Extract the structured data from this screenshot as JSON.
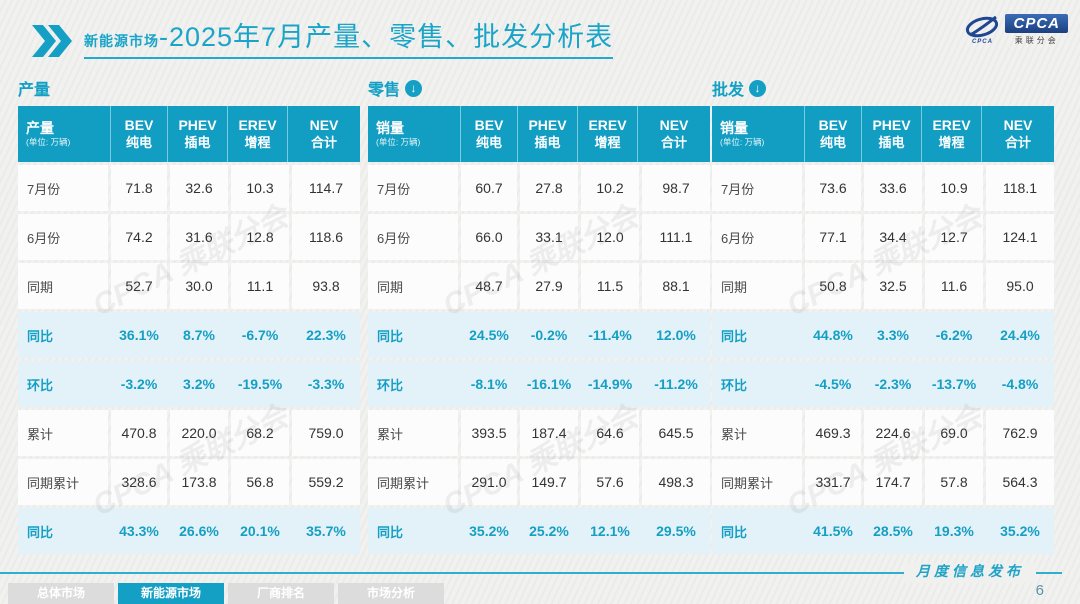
{
  "title": {
    "highlight": "新能源市场",
    "rest": "-2025年7月产量、零售、批发分析表"
  },
  "logo": {
    "badge": "CPCA",
    "caption": "CPCA",
    "subtitle": "乘联分会"
  },
  "watermark": "CPCA 乘联分会",
  "tables": [
    {
      "section_label": "产量",
      "arrow_icon": false,
      "header": {
        "label": "产量",
        "unit": "(单位: 万辆)",
        "columns": [
          {
            "en": "BEV",
            "cn": "纯电"
          },
          {
            "en": "PHEV",
            "cn": "插电"
          },
          {
            "en": "EREV",
            "cn": "增程"
          },
          {
            "en": "NEV",
            "cn": "合计"
          }
        ]
      },
      "rows": [
        {
          "label": "7月份",
          "type": "num",
          "values": [
            "71.8",
            "32.6",
            "10.3",
            "114.7"
          ]
        },
        {
          "label": "6月份",
          "type": "num",
          "values": [
            "74.2",
            "31.6",
            "12.8",
            "118.6"
          ]
        },
        {
          "label": "同期",
          "type": "num",
          "values": [
            "52.7",
            "30.0",
            "11.1",
            "93.8"
          ]
        },
        {
          "label": "同比",
          "type": "pct",
          "values": [
            "36.1%",
            "8.7%",
            "-6.7%",
            "22.3%"
          ]
        },
        {
          "label": "环比",
          "type": "pct",
          "values": [
            "-3.2%",
            "3.2%",
            "-19.5%",
            "-3.3%"
          ]
        },
        {
          "label": "累计",
          "type": "num",
          "values": [
            "470.8",
            "220.0",
            "68.2",
            "759.0"
          ]
        },
        {
          "label": "同期累计",
          "type": "num",
          "values": [
            "328.6",
            "173.8",
            "56.8",
            "559.2"
          ]
        },
        {
          "label": "同比",
          "type": "pct",
          "values": [
            "43.3%",
            "26.6%",
            "20.1%",
            "35.7%"
          ]
        }
      ]
    },
    {
      "section_label": "零售",
      "arrow_icon": true,
      "header": {
        "label": "销量",
        "unit": "(单位: 万辆)",
        "columns": [
          {
            "en": "BEV",
            "cn": "纯电"
          },
          {
            "en": "PHEV",
            "cn": "插电"
          },
          {
            "en": "EREV",
            "cn": "增程"
          },
          {
            "en": "NEV",
            "cn": "合计"
          }
        ]
      },
      "rows": [
        {
          "label": "7月份",
          "type": "num",
          "values": [
            "60.7",
            "27.8",
            "10.2",
            "98.7"
          ]
        },
        {
          "label": "6月份",
          "type": "num",
          "values": [
            "66.0",
            "33.1",
            "12.0",
            "111.1"
          ]
        },
        {
          "label": "同期",
          "type": "num",
          "values": [
            "48.7",
            "27.9",
            "11.5",
            "88.1"
          ]
        },
        {
          "label": "同比",
          "type": "pct",
          "values": [
            "24.5%",
            "-0.2%",
            "-11.4%",
            "12.0%"
          ]
        },
        {
          "label": "环比",
          "type": "pct",
          "values": [
            "-8.1%",
            "-16.1%",
            "-14.9%",
            "-11.2%"
          ]
        },
        {
          "label": "累计",
          "type": "num",
          "values": [
            "393.5",
            "187.4",
            "64.6",
            "645.5"
          ]
        },
        {
          "label": "同期累计",
          "type": "num",
          "values": [
            "291.0",
            "149.7",
            "57.6",
            "498.3"
          ]
        },
        {
          "label": "同比",
          "type": "pct",
          "values": [
            "35.2%",
            "25.2%",
            "12.1%",
            "29.5%"
          ]
        }
      ]
    },
    {
      "section_label": "批发",
      "arrow_icon": true,
      "header": {
        "label": "销量",
        "unit": "(单位: 万辆)",
        "columns": [
          {
            "en": "BEV",
            "cn": "纯电"
          },
          {
            "en": "PHEV",
            "cn": "插电"
          },
          {
            "en": "EREV",
            "cn": "增程"
          },
          {
            "en": "NEV",
            "cn": "合计"
          }
        ]
      },
      "rows": [
        {
          "label": "7月份",
          "type": "num",
          "values": [
            "73.6",
            "33.6",
            "10.9",
            "118.1"
          ]
        },
        {
          "label": "6月份",
          "type": "num",
          "values": [
            "77.1",
            "34.4",
            "12.7",
            "124.1"
          ]
        },
        {
          "label": "同期",
          "type": "num",
          "values": [
            "50.8",
            "32.5",
            "11.6",
            "95.0"
          ]
        },
        {
          "label": "同比",
          "type": "pct",
          "values": [
            "44.8%",
            "3.3%",
            "-6.2%",
            "24.4%"
          ]
        },
        {
          "label": "环比",
          "type": "pct",
          "values": [
            "-4.5%",
            "-2.3%",
            "-13.7%",
            "-4.8%"
          ]
        },
        {
          "label": "累计",
          "type": "num",
          "values": [
            "469.3",
            "224.6",
            "69.0",
            "762.9"
          ]
        },
        {
          "label": "同期累计",
          "type": "num",
          "values": [
            "331.7",
            "174.7",
            "57.8",
            "564.3"
          ]
        },
        {
          "label": "同比",
          "type": "pct",
          "values": [
            "41.5%",
            "28.5%",
            "19.3%",
            "35.2%"
          ]
        }
      ]
    }
  ],
  "footer": {
    "tabs": [
      {
        "label": "总体市场",
        "active": false
      },
      {
        "label": "新能源市场",
        "active": true
      },
      {
        "label": "厂商排名",
        "active": false
      },
      {
        "label": "市场分析",
        "active": false
      }
    ],
    "publication": "月度信息发布",
    "page": "6"
  },
  "colors": {
    "accent": "#14a0c4",
    "header_bg": "#119ec2",
    "pct_row_bg": "#e3f1f8",
    "title": "#1aa5c8",
    "logo_blue": "#1f4693"
  }
}
